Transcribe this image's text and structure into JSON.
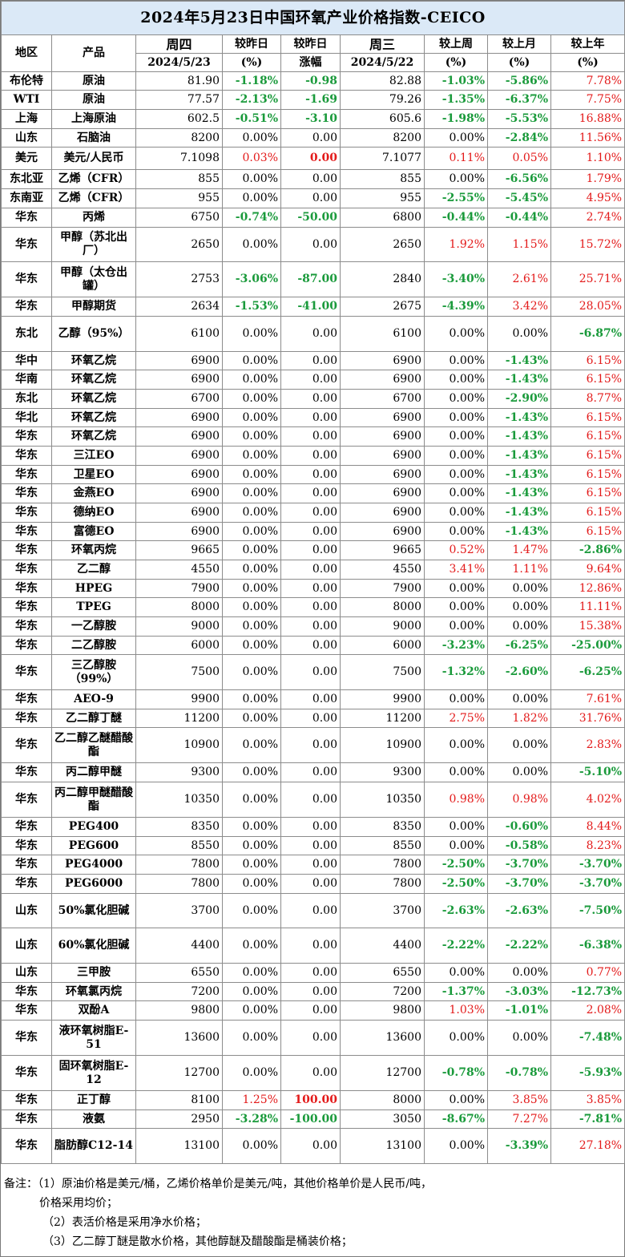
{
  "title": "2024年5月23日中国环氧产业价格指数-CEICO",
  "headers": {
    "region": "地区",
    "product": "产品",
    "thu": "周四",
    "thu_date": "2024/5/23",
    "vs_yday_pct": "较昨日",
    "vs_yday_pct_unit": "(%)",
    "vs_yday_amt": "较昨日",
    "vs_yday_amt_unit": "涨幅",
    "wed": "周三",
    "wed_date": "2024/5/22",
    "vs_week": "较上周",
    "vs_week_unit": "(%)",
    "vs_month": "较上月",
    "vs_month_unit": "(%)",
    "vs_year": "较上年",
    "vs_year_unit": "(%)"
  },
  "rows": [
    {
      "region": "布伦特",
      "product": "原油",
      "thu": "81.90",
      "d_pct": "-1.18%",
      "d_amt": "-0.98",
      "wed": "82.88",
      "w": "-1.03%",
      "m": "-5.86%",
      "y": "7.78%",
      "h": 23
    },
    {
      "region": "WTI",
      "product": "原油",
      "thu": "77.57",
      "d_pct": "-2.13%",
      "d_amt": "-1.69",
      "wed": "79.26",
      "w": "-1.35%",
      "m": "-6.37%",
      "y": "7.75%",
      "h": 24
    },
    {
      "region": "上海",
      "product": "上海原油",
      "thu": "602.5",
      "d_pct": "-0.51%",
      "d_amt": "-3.10",
      "wed": "605.6",
      "w": "-1.98%",
      "m": "-5.53%",
      "y": "16.88%",
      "h": 24
    },
    {
      "region": "山东",
      "product": "石脑油",
      "thu": "8200",
      "d_pct": "0.00%",
      "d_amt": "0.00",
      "wed": "8200",
      "w": "0.00%",
      "m": "-2.84%",
      "y": "11.56%",
      "h": 23
    },
    {
      "region": "美元",
      "product": "美元/人民币",
      "thu": "7.1098",
      "d_pct": "0.03%",
      "d_amt": "0.00",
      "wed": "7.1077",
      "w": "0.11%",
      "m": "0.05%",
      "y": "1.10%",
      "h": 28,
      "d_amt_red": true
    },
    {
      "region": "东北亚",
      "product": "乙烯（CFR）",
      "thu": "855",
      "d_pct": "0.00%",
      "d_amt": "0.00",
      "wed": "855",
      "w": "0.00%",
      "m": "-6.56%",
      "y": "1.79%",
      "h": 24
    },
    {
      "region": "东南亚",
      "product": "乙烯（CFR）",
      "thu": "955",
      "d_pct": "0.00%",
      "d_amt": "0.00",
      "wed": "955",
      "w": "-2.55%",
      "m": "-5.45%",
      "y": "4.95%",
      "h": 24
    },
    {
      "region": "华东",
      "product": "丙烯",
      "thu": "6750",
      "d_pct": "-0.74%",
      "d_amt": "-50.00",
      "wed": "6800",
      "w": "-0.44%",
      "m": "-0.44%",
      "y": "2.74%",
      "h": 24
    },
    {
      "region": "华东",
      "product": "甲醇（苏北出厂）",
      "thu": "2650",
      "d_pct": "0.00%",
      "d_amt": "0.00",
      "wed": "2650",
      "w": "1.92%",
      "m": "1.15%",
      "y": "15.72%",
      "h": 43
    },
    {
      "region": "华东",
      "product": "甲醇（太仓出罐）",
      "thu": "2753",
      "d_pct": "-3.06%",
      "d_amt": "-87.00",
      "wed": "2840",
      "w": "-3.40%",
      "m": "2.61%",
      "y": "25.71%",
      "h": 44
    },
    {
      "region": "华东",
      "product": "甲醇期货",
      "thu": "2634",
      "d_pct": "-1.53%",
      "d_amt": "-41.00",
      "wed": "2675",
      "w": "-4.39%",
      "m": "3.42%",
      "y": "28.05%",
      "h": 24
    },
    {
      "region": "东北",
      "product": "乙醇（95%）",
      "thu": "6100",
      "d_pct": "0.00%",
      "d_amt": "0.00",
      "wed": "6100",
      "w": "0.00%",
      "m": "0.00%",
      "y": "-6.87%",
      "h": 44
    },
    {
      "region": "华中",
      "product": "环氧乙烷",
      "thu": "6900",
      "d_pct": "0.00%",
      "d_amt": "0.00",
      "wed": "6900",
      "w": "0.00%",
      "m": "-1.43%",
      "y": "6.15%",
      "h": 23
    },
    {
      "region": "华南",
      "product": "环氧乙烷",
      "thu": "6900",
      "d_pct": "0.00%",
      "d_amt": "0.00",
      "wed": "6900",
      "w": "0.00%",
      "m": "-1.43%",
      "y": "6.15%",
      "h": 24
    },
    {
      "region": "东北",
      "product": "环氧乙烷",
      "thu": "6700",
      "d_pct": "0.00%",
      "d_amt": "0.00",
      "wed": "6700",
      "w": "0.00%",
      "m": "-2.90%",
      "y": "8.77%",
      "h": 24
    },
    {
      "region": "华北",
      "product": "环氧乙烷",
      "thu": "6900",
      "d_pct": "0.00%",
      "d_amt": "0.00",
      "wed": "6900",
      "w": "0.00%",
      "m": "-1.43%",
      "y": "6.15%",
      "h": 23
    },
    {
      "region": "华东",
      "product": "环氧乙烷",
      "thu": "6900",
      "d_pct": "0.00%",
      "d_amt": "0.00",
      "wed": "6900",
      "w": "0.00%",
      "m": "-1.43%",
      "y": "6.15%",
      "h": 24
    },
    {
      "region": "华东",
      "product": "三江EO",
      "thu": "6900",
      "d_pct": "0.00%",
      "d_amt": "0.00",
      "wed": "6900",
      "w": "0.00%",
      "m": "-1.43%",
      "y": "6.15%",
      "h": 24
    },
    {
      "region": "华东",
      "product": "卫星EO",
      "thu": "6900",
      "d_pct": "0.00%",
      "d_amt": "0.00",
      "wed": "6900",
      "w": "0.00%",
      "m": "-1.43%",
      "y": "6.15%",
      "h": 23
    },
    {
      "region": "华东",
      "product": "金燕EO",
      "thu": "6900",
      "d_pct": "0.00%",
      "d_amt": "0.00",
      "wed": "6900",
      "w": "0.00%",
      "m": "-1.43%",
      "y": "6.15%",
      "h": 24
    },
    {
      "region": "华东",
      "product": "德纳EO",
      "thu": "6900",
      "d_pct": "0.00%",
      "d_amt": "0.00",
      "wed": "6900",
      "w": "0.00%",
      "m": "-1.43%",
      "y": "6.15%",
      "h": 24
    },
    {
      "region": "华东",
      "product": "富德EO",
      "thu": "6900",
      "d_pct": "0.00%",
      "d_amt": "0.00",
      "wed": "6900",
      "w": "0.00%",
      "m": "-1.43%",
      "y": "6.15%",
      "h": 23
    },
    {
      "region": "华东",
      "product": "环氧丙烷",
      "thu": "9665",
      "d_pct": "0.00%",
      "d_amt": "0.00",
      "wed": "9665",
      "w": "0.52%",
      "m": "1.47%",
      "y": "-2.86%",
      "h": 24
    },
    {
      "region": "华东",
      "product": "乙二醇",
      "thu": "4550",
      "d_pct": "0.00%",
      "d_amt": "0.00",
      "wed": "4550",
      "w": "3.41%",
      "m": "1.11%",
      "y": "9.64%",
      "h": 24
    },
    {
      "region": "华东",
      "product": "HPEG",
      "thu": "7900",
      "d_pct": "0.00%",
      "d_amt": "0.00",
      "wed": "7900",
      "w": "0.00%",
      "m": "0.00%",
      "y": "12.86%",
      "h": 23
    },
    {
      "region": "华东",
      "product": "TPEG",
      "thu": "8000",
      "d_pct": "0.00%",
      "d_amt": "0.00",
      "wed": "8000",
      "w": "0.00%",
      "m": "0.00%",
      "y": "11.11%",
      "h": 24
    },
    {
      "region": "华东",
      "product": "一乙醇胺",
      "thu": "9000",
      "d_pct": "0.00%",
      "d_amt": "0.00",
      "wed": "9000",
      "w": "0.00%",
      "m": "0.00%",
      "y": "15.38%",
      "h": 24
    },
    {
      "region": "华东",
      "product": "二乙醇胺",
      "thu": "6000",
      "d_pct": "0.00%",
      "d_amt": "0.00",
      "wed": "6000",
      "w": "-3.23%",
      "m": "-6.25%",
      "y": "-25.00%",
      "h": 23
    },
    {
      "region": "华东",
      "product": "三乙醇胺（99%）",
      "thu": "7500",
      "d_pct": "0.00%",
      "d_amt": "0.00",
      "wed": "7500",
      "w": "-1.32%",
      "m": "-2.60%",
      "y": "-6.25%",
      "h": 44
    },
    {
      "region": "华东",
      "product": "AEO-9",
      "thu": "9900",
      "d_pct": "0.00%",
      "d_amt": "0.00",
      "wed": "9900",
      "w": "0.00%",
      "m": "0.00%",
      "y": "7.61%",
      "h": 24
    },
    {
      "region": "华东",
      "product": "乙二醇丁醚",
      "thu": "11200",
      "d_pct": "0.00%",
      "d_amt": "0.00",
      "wed": "11200",
      "w": "2.75%",
      "m": "1.82%",
      "y": "31.76%",
      "h": 23
    },
    {
      "region": "华东",
      "product": "乙二醇乙醚醋酸酯",
      "thu": "10900",
      "d_pct": "0.00%",
      "d_amt": "0.00",
      "wed": "10900",
      "w": "0.00%",
      "m": "0.00%",
      "y": "2.83%",
      "h": 44
    },
    {
      "region": "华东",
      "product": "丙二醇甲醚",
      "thu": "9300",
      "d_pct": "0.00%",
      "d_amt": "0.00",
      "wed": "9300",
      "w": "0.00%",
      "m": "0.00%",
      "y": "-5.10%",
      "h": 24
    },
    {
      "region": "华东",
      "product": "丙二醇甲醚醋酸酯",
      "thu": "10350",
      "d_pct": "0.00%",
      "d_amt": "0.00",
      "wed": "10350",
      "w": "0.98%",
      "m": "0.98%",
      "y": "4.02%",
      "h": 44
    },
    {
      "region": "华东",
      "product": "PEG400",
      "thu": "8350",
      "d_pct": "0.00%",
      "d_amt": "0.00",
      "wed": "8350",
      "w": "0.00%",
      "m": "-0.60%",
      "y": "8.44%",
      "h": 24
    },
    {
      "region": "华东",
      "product": "PEG600",
      "thu": "8550",
      "d_pct": "0.00%",
      "d_amt": "0.00",
      "wed": "8550",
      "w": "0.00%",
      "m": "-0.58%",
      "y": "8.23%",
      "h": 23
    },
    {
      "region": "华东",
      "product": "PEG4000",
      "thu": "7800",
      "d_pct": "0.00%",
      "d_amt": "0.00",
      "wed": "7800",
      "w": "-2.50%",
      "m": "-3.70%",
      "y": "-3.70%",
      "h": 24
    },
    {
      "region": "华东",
      "product": "PEG6000",
      "thu": "7800",
      "d_pct": "0.00%",
      "d_amt": "0.00",
      "wed": "7800",
      "w": "-2.50%",
      "m": "-3.70%",
      "y": "-3.70%",
      "h": 24
    },
    {
      "region": "山东",
      "product": "50%氯化胆碱",
      "thu": "3700",
      "d_pct": "0.00%",
      "d_amt": "0.00",
      "wed": "3700",
      "w": "-2.63%",
      "m": "-2.63%",
      "y": "-7.50%",
      "h": 43
    },
    {
      "region": "山东",
      "product": "60%氯化胆碱",
      "thu": "4400",
      "d_pct": "0.00%",
      "d_amt": "0.00",
      "wed": "4400",
      "w": "-2.22%",
      "m": "-2.22%",
      "y": "-6.38%",
      "h": 44
    },
    {
      "region": "山东",
      "product": "三甲胺",
      "thu": "6550",
      "d_pct": "0.00%",
      "d_amt": "0.00",
      "wed": "6550",
      "w": "0.00%",
      "m": "0.00%",
      "y": "0.77%",
      "h": 24
    },
    {
      "region": "华东",
      "product": "环氧氯丙烷",
      "thu": "7200",
      "d_pct": "0.00%",
      "d_amt": "0.00",
      "wed": "7200",
      "w": "-1.37%",
      "m": "-3.03%",
      "y": "-12.73%",
      "h": 23
    },
    {
      "region": "华东",
      "product": "双酚A",
      "thu": "9800",
      "d_pct": "0.00%",
      "d_amt": "0.00",
      "wed": "9800",
      "w": "1.03%",
      "m": "-1.01%",
      "y": "2.08%",
      "h": 24
    },
    {
      "region": "华东",
      "product": "液环氧树脂E-51",
      "thu": "13600",
      "d_pct": "0.00%",
      "d_amt": "0.00",
      "wed": "13600",
      "w": "0.00%",
      "m": "0.00%",
      "y": "-7.48%",
      "h": 44
    },
    {
      "region": "华东",
      "product": "固环氧树脂E-12",
      "thu": "12700",
      "d_pct": "0.00%",
      "d_amt": "0.00",
      "wed": "12700",
      "w": "-0.78%",
      "m": "-0.78%",
      "y": "-5.93%",
      "h": 44
    },
    {
      "region": "华东",
      "product": "正丁醇",
      "thu": "8100",
      "d_pct": "1.25%",
      "d_amt": "100.00",
      "wed": "8000",
      "w": "0.00%",
      "m": "3.85%",
      "y": "3.85%",
      "h": 24
    },
    {
      "region": "华东",
      "product": "液氨",
      "thu": "2950",
      "d_pct": "-3.28%",
      "d_amt": "-100.00",
      "wed": "3050",
      "w": "-8.67%",
      "m": "7.27%",
      "y": "-7.81%",
      "h": 23
    },
    {
      "region": "华东",
      "product": "脂肪醇C12-14",
      "thu": "13100",
      "d_pct": "0.00%",
      "d_amt": "0.00",
      "wed": "13100",
      "w": "0.00%",
      "m": "-3.39%",
      "y": "27.18%",
      "h": 44
    }
  ],
  "notes": [
    "备注：（1）原油价格是美元/桶，乙烯价格单价是美元/吨，其他价格单价是人民币/吨，",
    "价格采用均价；",
    "（2）表活价格是采用净水价格；",
    "（3）乙二醇丁醚是散水价格，其他醇醚及醋酸酯是桶装价格；"
  ]
}
